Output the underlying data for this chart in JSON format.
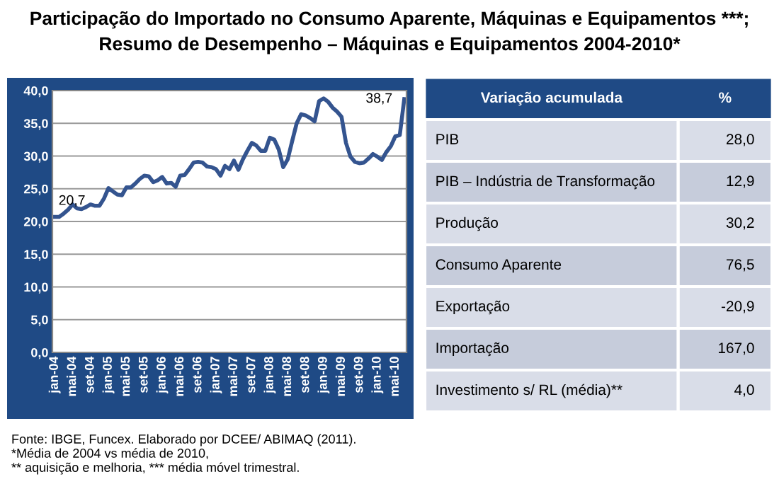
{
  "chart_data": [
    {
      "type": "line",
      "title": "Participação do Importado no Consumo Aparente, Máquinas e Equipamentos ***;",
      "categories": [
        "jan-04",
        null,
        null,
        null,
        "mai-04",
        null,
        null,
        null,
        "set-04",
        null,
        null,
        null,
        "jan-05",
        null,
        null,
        null,
        "mai-05",
        null,
        null,
        null,
        "set-05",
        null,
        null,
        null,
        "jan-06",
        null,
        null,
        null,
        "mai-06",
        null,
        null,
        null,
        "set-06",
        null,
        null,
        null,
        "jan-07",
        null,
        null,
        null,
        "mai-07",
        null,
        null,
        null,
        "set-07",
        null,
        null,
        null,
        "jan-08",
        null,
        null,
        null,
        "mai-08",
        null,
        null,
        null,
        "set-08",
        null,
        null,
        null,
        "jan-09",
        null,
        null,
        null,
        "mai-09",
        null,
        null,
        null,
        "set-09",
        null,
        null,
        null,
        "jan-10",
        null,
        null,
        null,
        "mai-10",
        null,
        null
      ],
      "series": [
        {
          "color": "#34548f",
          "values": [
            20.7,
            20.7,
            21.2,
            21.8,
            22.6,
            22.0,
            21.9,
            22.2,
            22.6,
            22.4,
            22.4,
            23.5,
            25.1,
            24.6,
            24.1,
            24.0,
            25.2,
            25.2,
            25.8,
            26.5,
            27.0,
            26.9,
            26.0,
            26.3,
            26.8,
            25.8,
            25.9,
            25.3,
            27.0,
            27.1,
            28.0,
            29.0,
            29.1,
            29.0,
            28.4,
            28.3,
            28.0,
            27.0,
            28.5,
            28.0,
            29.3,
            27.9,
            29.5,
            30.8,
            32.0,
            31.6,
            30.8,
            30.8,
            32.8,
            32.5,
            31.0,
            28.3,
            29.5,
            32.3,
            35.0,
            36.4,
            36.2,
            35.8,
            35.3,
            38.4,
            38.8,
            38.3,
            37.4,
            36.8,
            36.0,
            32.0,
            29.9,
            29.1,
            28.9,
            29.0,
            29.6,
            30.3,
            29.9,
            29.4,
            30.6,
            31.5,
            33.0,
            33.2,
            38.7
          ],
          "value_labels": [
            "20,7",
            null,
            null,
            null,
            null,
            null,
            null,
            null,
            null,
            null,
            null,
            null,
            null,
            null,
            null,
            null,
            null,
            null,
            null,
            null,
            null,
            null,
            null,
            null,
            null,
            null,
            null,
            null,
            null,
            null,
            null,
            null,
            null,
            null,
            null,
            null,
            null,
            null,
            null,
            null,
            null,
            null,
            null,
            null,
            null,
            null,
            null,
            null,
            null,
            null,
            null,
            null,
            null,
            null,
            null,
            null,
            null,
            null,
            null,
            null,
            null,
            null,
            null,
            null,
            null,
            null,
            null,
            null,
            null,
            null,
            null,
            null,
            null,
            null,
            null,
            null,
            null,
            null,
            "38,7"
          ]
        }
      ],
      "ylim": [
        0,
        40
      ],
      "yticks": [
        {
          "value": 0,
          "label": "0,0"
        },
        {
          "value": 5,
          "label": "5,0"
        },
        {
          "value": 10,
          "label": "10,0"
        },
        {
          "value": 15,
          "label": "15,0"
        },
        {
          "value": 20,
          "label": "20,0"
        },
        {
          "value": 25,
          "label": "25,0"
        },
        {
          "value": 30,
          "label": "30,0"
        },
        {
          "value": 35,
          "label": "35,0"
        },
        {
          "value": 40,
          "label": "40,0"
        }
      ],
      "grid": "y",
      "marker": "none",
      "line_style": "solid",
      "legend": false,
      "annotations": [
        "Fonte: IBGE, Funcex. Elaborado por DCEE/ ABIMAQ (2011).",
        "*Média de 2004 vs média de 2010,",
        "** aquisição e melhoria, *** média móvel trimestral."
      ]
    },
    {
      "type": "other",
      "title": "Resumo de Desempenho – Máquinas e Equipamentos 2004-2010*",
      "xlabel": "Variação acumulada",
      "ylabel": "%",
      "categories": [
        "PIB",
        "PIB – Indústria de Transformação",
        "Produção",
        "Consumo Aparente",
        "Exportação",
        "Importação",
        "Investimento s/ RL (média)**"
      ],
      "value_labels": [
        "28,0",
        "12,9",
        "30,2",
        "76,5",
        "-20,9",
        "167,0",
        "4,0"
      ]
    }
  ]
}
